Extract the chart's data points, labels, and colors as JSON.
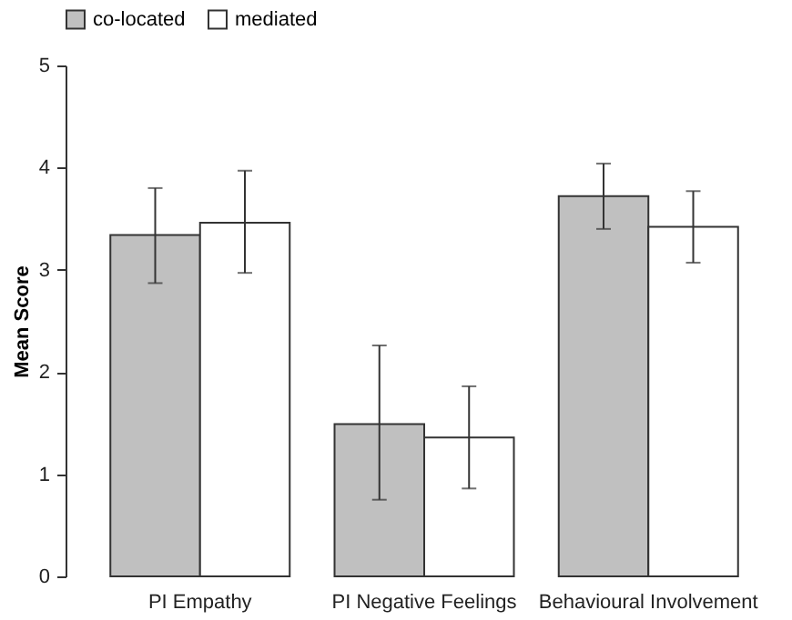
{
  "chart_data": {
    "type": "bar",
    "ylabel": "Mean Score",
    "categories": [
      "PI  Empathy",
      "PI  Negative Feelings",
      "Behavioural Involvement"
    ],
    "series": [
      {
        "name": "co-located",
        "color": "#c0c0c0",
        "values": [
          3.34,
          1.49,
          3.72
        ],
        "errors": [
          [
            2.87,
            3.8
          ],
          [
            0.75,
            2.26
          ],
          [
            3.4,
            4.04
          ]
        ]
      },
      {
        "name": "mediated",
        "color": "#ffffff",
        "values": [
          3.46,
          1.36,
          3.42
        ],
        "errors": [
          [
            2.97,
            3.97
          ],
          [
            0.86,
            1.86
          ],
          [
            3.07,
            3.77
          ]
        ]
      }
    ],
    "ylim": [
      0,
      5
    ],
    "yticks": [
      0,
      1,
      2,
      3,
      4,
      5
    ],
    "grid": false,
    "legend": "top"
  }
}
